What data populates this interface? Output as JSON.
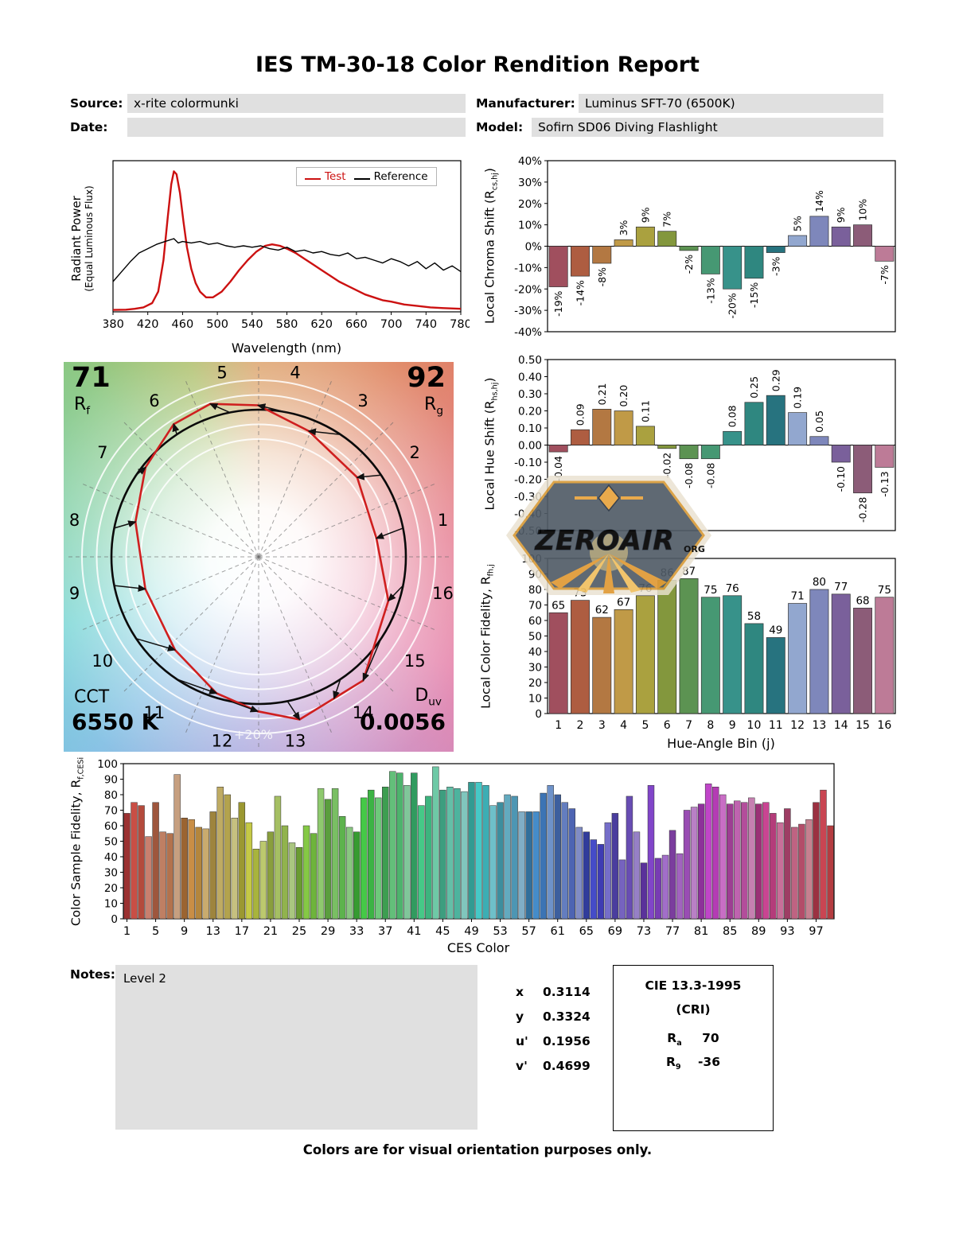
{
  "title": "IES TM-30-18 Color Rendition Report",
  "header": {
    "source_label": "Source:",
    "source_value": "x-rite colormunki",
    "date_label": "Date:",
    "date_value": "",
    "manufacturer_label": "Manufacturer:",
    "manufacturer_value": "Luminus SFT-70 (6500K)",
    "model_label": "Model:",
    "model_value": "Sofirn SD06 Diving Flashlight"
  },
  "spd_labels": {
    "legend_test": "Test",
    "legend_reference": "Reference",
    "xlabel": "Wavelength (nm)",
    "ylabel_line1": "Radiant Power",
    "ylabel_line2": "(Equal Luminous Flux)"
  },
  "cvg": {
    "rf_value": "71",
    "rf_symbol_main": "R",
    "rf_symbol_sub": "f",
    "rg_value": "92",
    "rg_symbol_main": "R",
    "rg_symbol_sub": "g",
    "cct_label": "CCT",
    "cct_value": "6550 K",
    "duv_symbol_main": "D",
    "duv_symbol_sub": "uv",
    "duv_value": "0.0056",
    "ring_label": "+20%"
  },
  "axis_titles": {
    "chroma_pre": "Local Chroma Shift (R",
    "chroma_sub": "cs,hj",
    "chroma_post": ")",
    "hue_pre": "Local Hue Shift (R",
    "hue_sub": "hs,hj",
    "hue_post": ")",
    "fid_pre": "Local Color Fidelity, R",
    "fid_sub": "fh,j",
    "fid_post": "",
    "ces_pre": "Color Sample Fidelity, R",
    "ces_sub": "f,CESi",
    "ces_post": "",
    "hue_bin_xlabel": "Hue-Angle Bin (j)",
    "ces_xlabel": "CES Color"
  },
  "bin_colors": [
    "#a04f5e",
    "#ae5d41",
    "#b37842",
    "#c09a47",
    "#aaa13f",
    "#83973d",
    "#5c9352",
    "#469873",
    "#37928a",
    "#2f8780",
    "#27737f",
    "#92a7cf",
    "#7e87bb",
    "#7a609b",
    "#8c5c78",
    "#bd7b97"
  ],
  "chart_data": [
    {
      "id": "spd",
      "type": "line",
      "title": "Spectral Power Distribution",
      "xlabel": "Wavelength (nm)",
      "ylabel": "Radiant Power (Equal Luminous Flux)",
      "xlim": [
        380,
        780
      ],
      "x_ticks": [
        380,
        420,
        460,
        500,
        540,
        580,
        620,
        660,
        700,
        740,
        780
      ],
      "series": [
        {
          "name": "Test",
          "color": "#cc1111",
          "points": [
            [
              380,
              0.002
            ],
            [
              395,
              0.004
            ],
            [
              405,
              0.01
            ],
            [
              415,
              0.02
            ],
            [
              425,
              0.05
            ],
            [
              432,
              0.13
            ],
            [
              438,
              0.35
            ],
            [
              443,
              0.65
            ],
            [
              447,
              0.88
            ],
            [
              450,
              0.97
            ],
            [
              453,
              0.95
            ],
            [
              457,
              0.82
            ],
            [
              461,
              0.62
            ],
            [
              465,
              0.44
            ],
            [
              470,
              0.29
            ],
            [
              475,
              0.19
            ],
            [
              480,
              0.13
            ],
            [
              487,
              0.09
            ],
            [
              495,
              0.09
            ],
            [
              505,
              0.13
            ],
            [
              515,
              0.2
            ],
            [
              525,
              0.28
            ],
            [
              535,
              0.35
            ],
            [
              545,
              0.41
            ],
            [
              555,
              0.45
            ],
            [
              563,
              0.46
            ],
            [
              572,
              0.45
            ],
            [
              580,
              0.43
            ],
            [
              590,
              0.4
            ],
            [
              600,
              0.36
            ],
            [
              610,
              0.32
            ],
            [
              620,
              0.28
            ],
            [
              630,
              0.24
            ],
            [
              640,
              0.2
            ],
            [
              650,
              0.17
            ],
            [
              660,
              0.14
            ],
            [
              670,
              0.11
            ],
            [
              680,
              0.09
            ],
            [
              690,
              0.07
            ],
            [
              700,
              0.06
            ],
            [
              715,
              0.04
            ],
            [
              730,
              0.03
            ],
            [
              745,
              0.02
            ],
            [
              760,
              0.015
            ],
            [
              780,
              0.01
            ]
          ]
        },
        {
          "name": "Reference",
          "color": "#000000",
          "points": [
            [
              380,
              0.2
            ],
            [
              390,
              0.27
            ],
            [
              400,
              0.34
            ],
            [
              410,
              0.4
            ],
            [
              420,
              0.43
            ],
            [
              430,
              0.46
            ],
            [
              440,
              0.48
            ],
            [
              450,
              0.5
            ],
            [
              455,
              0.47
            ],
            [
              460,
              0.48
            ],
            [
              470,
              0.47
            ],
            [
              480,
              0.48
            ],
            [
              490,
              0.46
            ],
            [
              500,
              0.47
            ],
            [
              510,
              0.45
            ],
            [
              520,
              0.44
            ],
            [
              530,
              0.45
            ],
            [
              540,
              0.44
            ],
            [
              550,
              0.45
            ],
            [
              560,
              0.43
            ],
            [
              570,
              0.42
            ],
            [
              580,
              0.44
            ],
            [
              590,
              0.41
            ],
            [
              600,
              0.42
            ],
            [
              610,
              0.4
            ],
            [
              620,
              0.41
            ],
            [
              630,
              0.39
            ],
            [
              640,
              0.38
            ],
            [
              650,
              0.4
            ],
            [
              660,
              0.36
            ],
            [
              670,
              0.37
            ],
            [
              680,
              0.35
            ],
            [
              690,
              0.33
            ],
            [
              700,
              0.36
            ],
            [
              710,
              0.34
            ],
            [
              720,
              0.31
            ],
            [
              730,
              0.34
            ],
            [
              740,
              0.29
            ],
            [
              750,
              0.33
            ],
            [
              760,
              0.28
            ],
            [
              770,
              0.31
            ],
            [
              780,
              0.27
            ]
          ]
        }
      ]
    },
    {
      "id": "local_chroma_shift",
      "type": "bar",
      "ylabel": "Local Chroma Shift (Rcs,hj)",
      "ylim": [
        -40,
        40
      ],
      "ytick_step": 10,
      "unit": "%",
      "values": [
        -19,
        -14,
        -8,
        3,
        9,
        7,
        -2,
        -13,
        -20,
        -15,
        -3,
        5,
        14,
        9,
        10,
        -7
      ]
    },
    {
      "id": "local_hue_shift",
      "type": "bar",
      "ylabel": "Local Hue Shift (Rhs,hj)",
      "ylim": [
        -0.5,
        0.5
      ],
      "ytick_step": 0.1,
      "values": [
        -0.04,
        0.09,
        0.21,
        0.2,
        0.11,
        -0.02,
        -0.08,
        -0.08,
        0.08,
        0.25,
        0.29,
        0.19,
        0.05,
        -0.1,
        -0.28,
        -0.13
      ]
    },
    {
      "id": "local_color_fidelity",
      "type": "bar",
      "ylabel": "Local Color Fidelity, Rfh,j",
      "xlabel": "Hue-Angle Bin (j)",
      "ylim": [
        0,
        100
      ],
      "ytick_step": 10,
      "categories": [
        1,
        2,
        3,
        4,
        5,
        6,
        7,
        8,
        9,
        10,
        11,
        12,
        13,
        14,
        15,
        16
      ],
      "values": [
        65,
        73,
        62,
        67,
        76,
        86,
        87,
        75,
        76,
        58,
        49,
        71,
        80,
        77,
        68,
        75
      ]
    },
    {
      "id": "color_sample_fidelity",
      "type": "bar",
      "ylabel": "Color Sample Fidelity, Rf,CESi",
      "xlabel": "CES Color",
      "ylim": [
        0,
        100
      ],
      "ytick_step": 10,
      "x_tick_labels": [
        1,
        5,
        9,
        13,
        17,
        21,
        25,
        29,
        33,
        37,
        41,
        45,
        49,
        53,
        57,
        61,
        65,
        69,
        73,
        77,
        81,
        85,
        89,
        93,
        97
      ],
      "values": [
        68,
        75,
        73,
        53,
        75,
        56,
        55,
        93,
        65,
        64,
        59,
        58,
        69,
        85,
        80,
        65,
        75,
        62,
        45,
        50,
        56,
        79,
        60,
        49,
        46,
        60,
        55,
        84,
        77,
        84,
        66,
        59,
        56,
        78,
        83,
        78,
        85,
        95,
        94,
        86,
        94,
        73,
        79,
        98,
        83,
        85,
        84,
        82,
        88,
        88,
        86,
        73,
        75,
        80,
        79,
        69,
        69,
        69,
        81,
        86,
        80,
        75,
        71,
        59,
        56,
        51,
        48,
        62,
        68,
        38,
        79,
        56,
        36,
        86,
        39,
        41,
        57,
        42,
        70,
        72,
        74,
        87,
        85,
        80,
        74,
        76,
        75,
        78,
        74,
        75,
        68,
        62,
        71,
        59,
        61,
        64,
        75,
        83,
        60
      ]
    }
  ],
  "summary": {
    "rf": 71,
    "rg": 92,
    "cct": "6550 K",
    "duv": "0.0056"
  },
  "notes": {
    "label": "Notes:",
    "value": "Level 2"
  },
  "chromaticity": {
    "x_label": "x",
    "x": "0.3114",
    "y_label": "y",
    "y": "0.3324",
    "u_label": "u'",
    "u": "0.1956",
    "v_label": "v'",
    "v": "0.4699"
  },
  "cri_box": {
    "title": "CIE 13.3-1995",
    "subtitle": "(CRI)",
    "ra_main": "R",
    "ra_sub": "a",
    "ra_value": "70",
    "r9_main": "R",
    "r9_sub": "9",
    "r9_value": "-36"
  },
  "watermark": {
    "text": "ZEROAIR",
    "suffix": "ORG"
  },
  "footer": "Colors are for visual orientation purposes only."
}
